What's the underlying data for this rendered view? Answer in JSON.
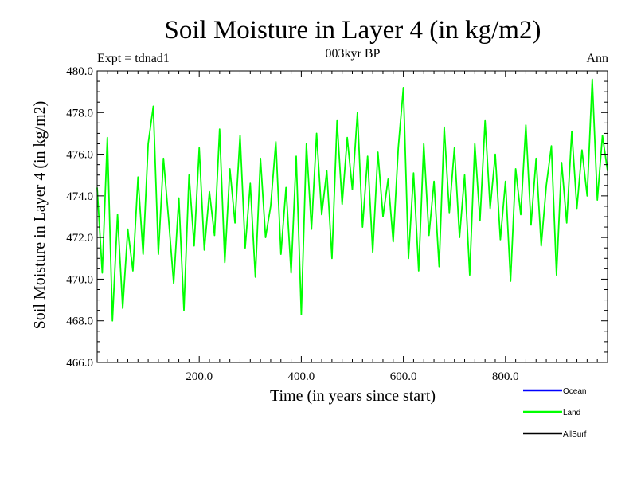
{
  "chart_data": {
    "type": "line",
    "title": "Soil Moisture in Layer 4 (in kg/m2)",
    "subtitle": "003kyr BP",
    "left_label": "Expt = tdnad1",
    "right_label": "Ann",
    "xlabel": "Time (in years since start)",
    "ylabel": "Soil Moisture in Layer 4 (in kg/m2)",
    "xlim": [
      0,
      1000
    ],
    "ylim": [
      466.0,
      480.0
    ],
    "xticks": [
      200,
      400,
      600,
      800
    ],
    "xtick_labels": [
      "200.0",
      "400.0",
      "600.0",
      "800.0"
    ],
    "yticks": [
      466,
      468,
      470,
      472,
      474,
      476,
      478,
      480
    ],
    "ytick_labels": [
      "466.0",
      "468.0",
      "470.0",
      "472.0",
      "474.0",
      "476.0",
      "478.0",
      "480.0"
    ],
    "legend": [
      {
        "name": "Ocean",
        "color": "#0000ff"
      },
      {
        "name": "Land",
        "color": "#00ff00"
      },
      {
        "name": "AllSurf",
        "color": "#000000"
      }
    ],
    "series": [
      {
        "name": "Land",
        "color": "#00ff00",
        "x": [
          0,
          10,
          20,
          30,
          40,
          50,
          60,
          70,
          80,
          90,
          100,
          110,
          120,
          130,
          140,
          150,
          160,
          170,
          180,
          190,
          200,
          210,
          220,
          230,
          240,
          250,
          260,
          270,
          280,
          290,
          300,
          310,
          320,
          330,
          340,
          350,
          360,
          370,
          380,
          390,
          400,
          410,
          420,
          430,
          440,
          450,
          460,
          470,
          480,
          490,
          500,
          510,
          520,
          530,
          540,
          550,
          560,
          570,
          580,
          590,
          600,
          610,
          620,
          630,
          640,
          650,
          660,
          670,
          680,
          690,
          700,
          710,
          720,
          730,
          740,
          750,
          760,
          770,
          780,
          790,
          800,
          810,
          820,
          830,
          840,
          850,
          860,
          870,
          880,
          890,
          900,
          910,
          920,
          930,
          940,
          950,
          960,
          970,
          980,
          990,
          1000
        ],
        "y": [
          474.4,
          470.3,
          476.8,
          468.0,
          473.1,
          468.6,
          472.4,
          470.4,
          474.9,
          471.2,
          476.5,
          478.3,
          471.2,
          475.8,
          472.9,
          469.8,
          473.9,
          468.5,
          475.0,
          471.6,
          476.3,
          471.4,
          474.2,
          472.1,
          477.2,
          470.8,
          475.3,
          472.7,
          476.9,
          471.5,
          474.6,
          470.1,
          475.8,
          472.0,
          473.5,
          476.6,
          471.2,
          474.4,
          470.3,
          475.9,
          468.3,
          476.5,
          472.4,
          477.0,
          473.1,
          475.2,
          471.0,
          477.6,
          473.6,
          476.8,
          474.3,
          478.0,
          472.5,
          475.9,
          471.3,
          476.1,
          473.0,
          474.8,
          471.8,
          476.3,
          479.2,
          471.0,
          475.1,
          470.4,
          476.5,
          472.1,
          474.7,
          470.6,
          477.3,
          473.2,
          476.3,
          472.0,
          475.0,
          470.2,
          476.5,
          472.8,
          477.6,
          473.4,
          476.0,
          471.9,
          474.7,
          469.9,
          475.3,
          473.1,
          477.4,
          472.6,
          475.8,
          471.6,
          474.5,
          476.4,
          470.2,
          475.6,
          472.7,
          477.1,
          473.4,
          476.2,
          474.0,
          479.6,
          473.8,
          476.9,
          475.2
        ]
      }
    ]
  }
}
